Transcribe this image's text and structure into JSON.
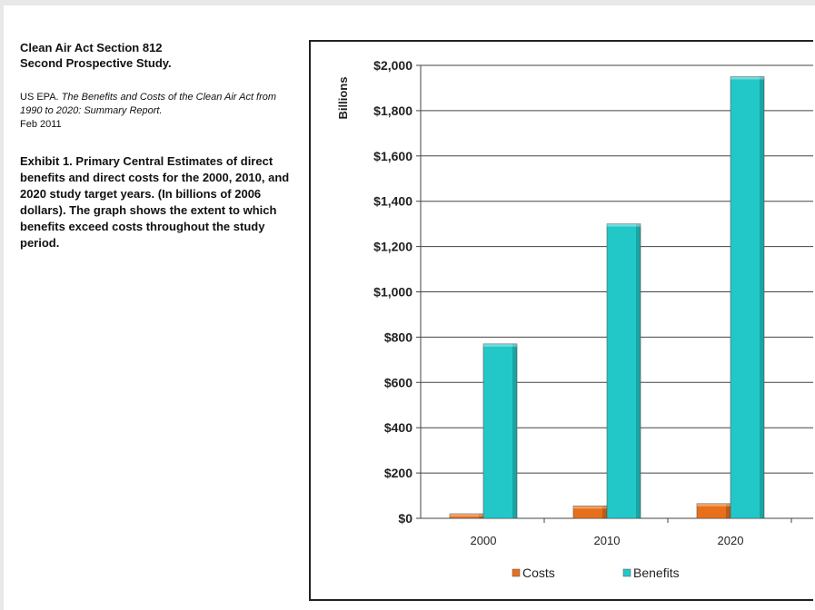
{
  "header": {
    "study_title_line1": "Clean Air Act Section 812",
    "study_title_line2": "Second Prospective Study.",
    "citation_author": "US EPA.",
    "citation_title": "The Benefits and Costs of the Clean Air Act from 1990 to 2020: Summary Report.",
    "citation_date": "Feb 2011",
    "exhibit_text": "Exhibit 1. Primary Central Estimates of direct benefits and direct costs for the 2000, 2010, and 2020 study target years. (In billions of 2006 dollars). The graph shows the extent to which benefits exceed costs throughout the study period."
  },
  "chart_data": {
    "type": "bar",
    "ylabel": "Billions",
    "categories": [
      "2000",
      "2010",
      "2020"
    ],
    "series": [
      {
        "name": "Costs",
        "values": [
          20,
          55,
          65
        ],
        "color": "#e8701a"
      },
      {
        "name": "Benefits",
        "values": [
          770,
          1300,
          1950
        ],
        "color": "#22c8c8"
      }
    ],
    "ylim": [
      0,
      2000
    ],
    "yticks": [
      0,
      200,
      400,
      600,
      800,
      1000,
      1200,
      1400,
      1600,
      1800,
      2000
    ],
    "ytick_labels": [
      "$0",
      "$200",
      "$400",
      "$600",
      "$800",
      "$1,000",
      "$1,200",
      "$1,400",
      "$1,600",
      "$1,800",
      "$2,000"
    ],
    "grid": true,
    "legend_position": "bottom"
  }
}
